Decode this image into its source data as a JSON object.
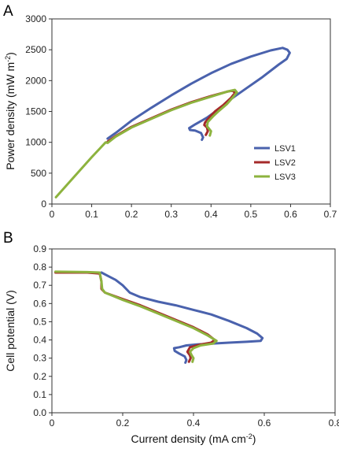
{
  "chart_data": [
    {
      "type": "line",
      "panel_label": "A",
      "ylabel": "Power density (mW m",
      "ylabel_sup": "-2",
      "ylabel_end": ")",
      "xlabel": "",
      "xlim": [
        0,
        0.7
      ],
      "ylim": [
        0,
        3000
      ],
      "xticks": [
        "0",
        "0.1",
        "0.2",
        "0.3",
        "0.4",
        "0.5",
        "0.6",
        "0.7"
      ],
      "yticks": [
        "0",
        "500",
        "1000",
        "1500",
        "2000",
        "2500",
        "3000"
      ],
      "grid": false,
      "legend_position": "right",
      "series": [
        {
          "name": "LSV1",
          "color": "#4a62ad",
          "points": [
            [
              0.14,
              1060
            ],
            [
              0.16,
              1150
            ],
            [
              0.2,
              1350
            ],
            [
              0.25,
              1560
            ],
            [
              0.3,
              1760
            ],
            [
              0.35,
              1950
            ],
            [
              0.4,
              2120
            ],
            [
              0.45,
              2270
            ],
            [
              0.5,
              2390
            ],
            [
              0.55,
              2490
            ],
            [
              0.58,
              2530
            ],
            [
              0.592,
              2500
            ],
            [
              0.598,
              2450
            ],
            [
              0.59,
              2350
            ],
            [
              0.57,
              2260
            ],
            [
              0.53,
              2060
            ],
            [
              0.49,
              1880
            ],
            [
              0.45,
              1700
            ],
            [
              0.42,
              1540
            ],
            [
              0.39,
              1400
            ],
            [
              0.36,
              1290
            ],
            [
              0.345,
              1230
            ],
            [
              0.347,
              1200
            ],
            [
              0.36,
              1190
            ],
            [
              0.375,
              1150
            ],
            [
              0.38,
              1080
            ],
            [
              0.377,
              1040
            ]
          ]
        },
        {
          "name": "LSV2",
          "color": "#a52a2a",
          "points": [
            [
              0.14,
              1010
            ],
            [
              0.16,
              1100
            ],
            [
              0.2,
              1250
            ],
            [
              0.25,
              1390
            ],
            [
              0.3,
              1530
            ],
            [
              0.35,
              1650
            ],
            [
              0.4,
              1750
            ],
            [
              0.44,
              1820
            ],
            [
              0.455,
              1840
            ],
            [
              0.46,
              1800
            ],
            [
              0.45,
              1720
            ],
            [
              0.43,
              1600
            ],
            [
              0.41,
              1500
            ],
            [
              0.395,
              1400
            ],
            [
              0.385,
              1320
            ],
            [
              0.383,
              1280
            ],
            [
              0.39,
              1240
            ],
            [
              0.392,
              1180
            ],
            [
              0.387,
              1120
            ]
          ]
        },
        {
          "name": "LSV3",
          "color": "#8db33e",
          "points": [
            [
              0.01,
              110
            ],
            [
              0.05,
              400
            ],
            [
              0.1,
              760
            ],
            [
              0.135,
              1000
            ],
            [
              0.14,
              990
            ],
            [
              0.16,
              1090
            ],
            [
              0.2,
              1240
            ],
            [
              0.25,
              1380
            ],
            [
              0.3,
              1520
            ],
            [
              0.35,
              1640
            ],
            [
              0.4,
              1740
            ],
            [
              0.44,
              1820
            ],
            [
              0.46,
              1850
            ],
            [
              0.465,
              1810
            ],
            [
              0.455,
              1730
            ],
            [
              0.44,
              1620
            ],
            [
              0.42,
              1510
            ],
            [
              0.405,
              1420
            ],
            [
              0.392,
              1330
            ],
            [
              0.39,
              1260
            ],
            [
              0.395,
              1220
            ],
            [
              0.4,
              1180
            ],
            [
              0.397,
              1110
            ]
          ]
        }
      ]
    },
    {
      "type": "line",
      "panel_label": "B",
      "ylabel": "Cell potential (V)",
      "xlabel": "Current density (mA cm",
      "xlabel_sup": "-2",
      "xlabel_end": ")",
      "xlim": [
        0,
        0.8
      ],
      "ylim": [
        0,
        0.9
      ],
      "xticks": [
        "0",
        "0.2",
        "0.4",
        "0.6",
        "0.8"
      ],
      "yticks": [
        "0.0",
        "0.1",
        "0.2",
        "0.3",
        "0.4",
        "0.5",
        "0.6",
        "0.7",
        "0.8",
        "0.9"
      ],
      "grid": false,
      "series": [
        {
          "name": "LSV1",
          "color": "#4a62ad",
          "points": [
            [
              0.14,
              0.77
            ],
            [
              0.16,
              0.75
            ],
            [
              0.18,
              0.73
            ],
            [
              0.2,
              0.7
            ],
            [
              0.22,
              0.66
            ],
            [
              0.25,
              0.635
            ],
            [
              0.3,
              0.61
            ],
            [
              0.35,
              0.59
            ],
            [
              0.4,
              0.565
            ],
            [
              0.45,
              0.54
            ],
            [
              0.5,
              0.505
            ],
            [
              0.55,
              0.465
            ],
            [
              0.58,
              0.435
            ],
            [
              0.595,
              0.41
            ],
            [
              0.59,
              0.395
            ],
            [
              0.55,
              0.39
            ],
            [
              0.5,
              0.385
            ],
            [
              0.45,
              0.38
            ],
            [
              0.41,
              0.375
            ],
            [
              0.38,
              0.37
            ],
            [
              0.36,
              0.36
            ],
            [
              0.345,
              0.355
            ],
            [
              0.347,
              0.34
            ],
            [
              0.36,
              0.325
            ],
            [
              0.375,
              0.31
            ],
            [
              0.38,
              0.29
            ],
            [
              0.377,
              0.275
            ]
          ]
        },
        {
          "name": "LSV2",
          "color": "#a52a2a",
          "points": [
            [
              0.01,
              0.77
            ],
            [
              0.1,
              0.77
            ],
            [
              0.135,
              0.765
            ],
            [
              0.14,
              0.72
            ],
            [
              0.14,
              0.68
            ],
            [
              0.15,
              0.66
            ],
            [
              0.2,
              0.625
            ],
            [
              0.25,
              0.59
            ],
            [
              0.3,
              0.55
            ],
            [
              0.35,
              0.51
            ],
            [
              0.4,
              0.47
            ],
            [
              0.44,
              0.43
            ],
            [
              0.46,
              0.4
            ],
            [
              0.45,
              0.385
            ],
            [
              0.42,
              0.375
            ],
            [
              0.39,
              0.36
            ],
            [
              0.383,
              0.335
            ],
            [
              0.39,
              0.315
            ],
            [
              0.392,
              0.3
            ],
            [
              0.387,
              0.28
            ]
          ]
        },
        {
          "name": "LSV3",
          "color": "#8db33e",
          "points": [
            [
              0.01,
              0.775
            ],
            [
              0.1,
              0.773
            ],
            [
              0.135,
              0.77
            ],
            [
              0.14,
              0.72
            ],
            [
              0.142,
              0.68
            ],
            [
              0.15,
              0.66
            ],
            [
              0.2,
              0.62
            ],
            [
              0.25,
              0.585
            ],
            [
              0.3,
              0.545
            ],
            [
              0.35,
              0.505
            ],
            [
              0.4,
              0.465
            ],
            [
              0.44,
              0.425
            ],
            [
              0.465,
              0.395
            ],
            [
              0.455,
              0.38
            ],
            [
              0.42,
              0.37
            ],
            [
              0.4,
              0.355
            ],
            [
              0.39,
              0.335
            ],
            [
              0.395,
              0.315
            ],
            [
              0.4,
              0.3
            ],
            [
              0.397,
              0.28
            ]
          ]
        }
      ]
    }
  ]
}
